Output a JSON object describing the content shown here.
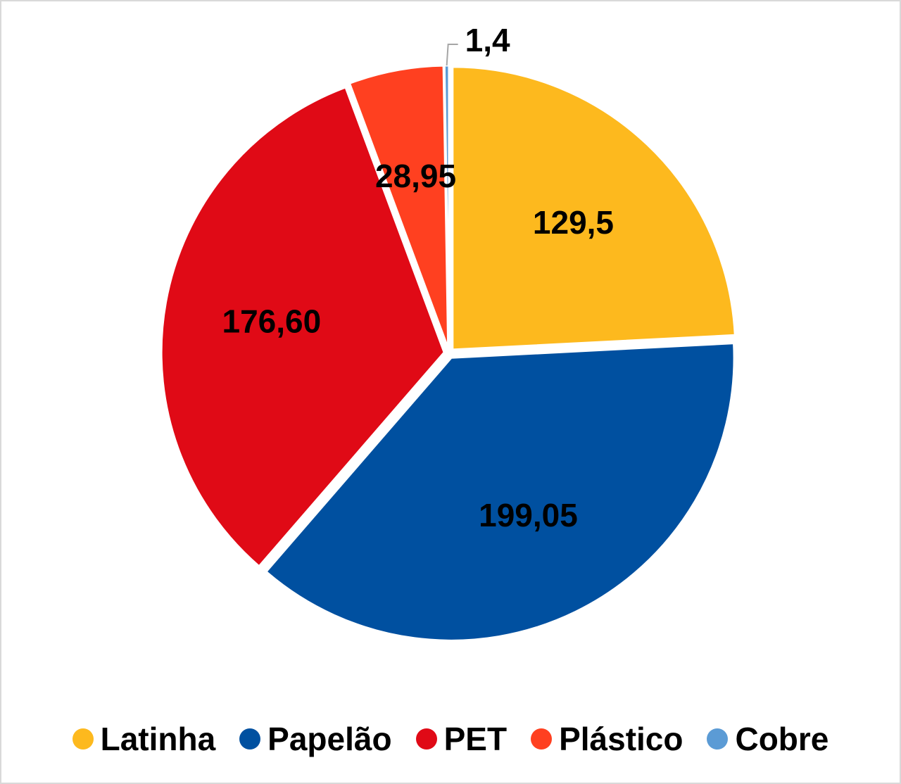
{
  "chart_data": {
    "type": "pie",
    "categories": [
      "Latinha",
      "Papelão",
      "PET",
      "Plástico",
      "Cobre"
    ],
    "values": [
      129.5,
      199.05,
      176.6,
      28.95,
      1.4
    ],
    "value_labels": [
      "129,5",
      "199,05",
      "176,60",
      "28,95",
      "1,4"
    ],
    "colors": [
      "#FDB91E",
      "#0050A0",
      "#E00A16",
      "#FF4020",
      "#5B9BD5"
    ],
    "start_angle_deg": 0,
    "direction": "clockwise",
    "legend_position": "bottom",
    "title": ""
  }
}
